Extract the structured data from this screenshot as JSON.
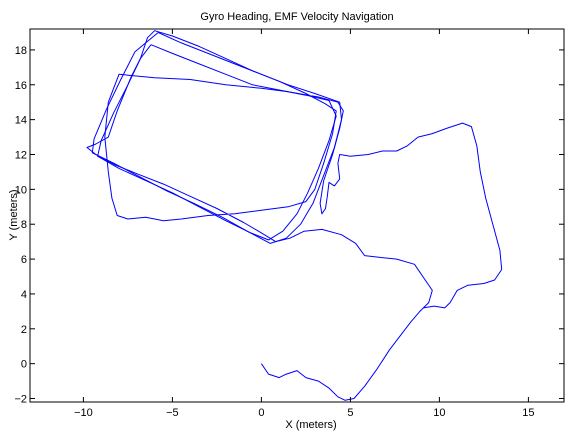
{
  "chart_data": {
    "type": "line",
    "title": "Gyro Heading, EMF Velocity Navigation",
    "xlabel": "X (meters)",
    "ylabel": "Y (meters)",
    "xlim": [
      -13,
      17
    ],
    "ylim": [
      -2.2,
      19.2
    ],
    "x_ticks": [
      -10,
      -5,
      0,
      5,
      10,
      15
    ],
    "y_ticks": [
      -2,
      0,
      2,
      4,
      6,
      8,
      10,
      12,
      14,
      16,
      18
    ],
    "grid": false,
    "series_color": "#0000ff",
    "series": [
      {
        "points": [
          [
            0.0,
            0.0
          ],
          [
            0.4,
            -0.6
          ],
          [
            1.0,
            -0.8
          ],
          [
            1.4,
            -0.6
          ],
          [
            2.0,
            -0.4
          ],
          [
            2.5,
            -0.8
          ],
          [
            3.2,
            -1.0
          ],
          [
            3.8,
            -1.4
          ],
          [
            4.3,
            -1.9
          ],
          [
            4.7,
            -2.1
          ],
          [
            5.2,
            -2.0
          ],
          [
            5.8,
            -1.3
          ],
          [
            6.5,
            -0.3
          ],
          [
            7.2,
            0.8
          ],
          [
            7.8,
            1.6
          ],
          [
            8.4,
            2.4
          ],
          [
            8.9,
            3.0
          ],
          [
            9.1,
            3.2
          ],
          [
            9.7,
            3.3
          ],
          [
            10.3,
            3.2
          ],
          [
            10.6,
            3.5
          ],
          [
            11.0,
            4.2
          ],
          [
            11.6,
            4.5
          ],
          [
            12.5,
            4.6
          ],
          [
            13.1,
            4.8
          ],
          [
            13.5,
            5.4
          ],
          [
            13.4,
            6.5
          ],
          [
            13.0,
            8.0
          ],
          [
            12.6,
            9.5
          ],
          [
            12.3,
            11.0
          ],
          [
            12.1,
            12.5
          ],
          [
            11.8,
            13.6
          ],
          [
            11.3,
            13.8
          ],
          [
            10.4,
            13.5
          ],
          [
            9.6,
            13.2
          ],
          [
            8.8,
            13.0
          ],
          [
            8.2,
            12.5
          ],
          [
            7.6,
            12.2
          ],
          [
            6.8,
            12.2
          ],
          [
            6.0,
            12.0
          ],
          [
            5.0,
            11.9
          ],
          [
            4.4,
            12.0
          ],
          [
            4.3,
            11.5
          ],
          [
            4.4,
            10.6
          ],
          [
            4.1,
            10.2
          ],
          [
            3.8,
            10.4
          ],
          [
            3.7,
            9.6
          ],
          [
            3.6,
            8.9
          ],
          [
            3.4,
            8.6
          ],
          [
            3.3,
            9.2
          ],
          [
            3.5,
            10.5
          ],
          [
            4.0,
            12.0
          ],
          [
            4.4,
            13.5
          ],
          [
            4.6,
            14.5
          ],
          [
            4.3,
            15.0
          ],
          [
            3.2,
            15.3
          ],
          [
            1.5,
            15.6
          ],
          [
            0.0,
            15.8
          ],
          [
            -2.0,
            16.0
          ],
          [
            -4.0,
            16.3
          ],
          [
            -6.0,
            16.4
          ],
          [
            -8.0,
            16.6
          ],
          [
            -8.6,
            15.0
          ],
          [
            -8.8,
            13.0
          ],
          [
            -8.6,
            11.0
          ],
          [
            -8.4,
            9.5
          ],
          [
            -8.1,
            8.5
          ],
          [
            -7.5,
            8.3
          ],
          [
            -6.5,
            8.4
          ],
          [
            -5.5,
            8.2
          ],
          [
            -4.5,
            8.3
          ],
          [
            -3.0,
            8.5
          ],
          [
            -1.5,
            8.6
          ],
          [
            0.0,
            8.8
          ],
          [
            1.5,
            9.0
          ],
          [
            2.5,
            9.3
          ],
          [
            3.0,
            10.0
          ],
          [
            3.5,
            11.5
          ],
          [
            4.0,
            13.2
          ],
          [
            4.2,
            14.5
          ],
          [
            3.6,
            14.9
          ],
          [
            2.5,
            15.5
          ],
          [
            1.0,
            16.2
          ],
          [
            -0.5,
            16.8
          ],
          [
            -2.0,
            17.5
          ],
          [
            -3.5,
            18.2
          ],
          [
            -5.0,
            18.8
          ],
          [
            -6.0,
            19.1
          ],
          [
            -6.4,
            18.7
          ],
          [
            -6.8,
            17.5
          ],
          [
            -7.3,
            16.5
          ],
          [
            -7.7,
            15.5
          ],
          [
            -8.1,
            14.5
          ],
          [
            -8.6,
            13.0
          ],
          [
            -9.3,
            12.6
          ],
          [
            -9.8,
            12.4
          ],
          [
            -9.3,
            12.0
          ],
          [
            -8.2,
            11.4
          ],
          [
            -7.0,
            10.9
          ],
          [
            -5.5,
            10.3
          ],
          [
            -4.0,
            9.6
          ],
          [
            -2.5,
            8.9
          ],
          [
            -1.0,
            8.1
          ],
          [
            0.0,
            7.5
          ],
          [
            0.8,
            7.0
          ],
          [
            1.6,
            7.2
          ],
          [
            2.4,
            7.6
          ],
          [
            3.4,
            7.7
          ],
          [
            4.5,
            7.4
          ],
          [
            5.3,
            6.9
          ],
          [
            5.8,
            6.2
          ],
          [
            6.6,
            6.1
          ],
          [
            7.6,
            6.0
          ],
          [
            8.6,
            5.7
          ],
          [
            9.2,
            4.8
          ],
          [
            9.6,
            4.2
          ],
          [
            9.4,
            3.5
          ],
          [
            9.0,
            3.1
          ]
        ]
      },
      {
        "points": [
          [
            -6.2,
            18.3
          ],
          [
            -5.0,
            17.8
          ],
          [
            -3.5,
            17.2
          ],
          [
            -2.0,
            16.6
          ],
          [
            -0.5,
            16.0
          ],
          [
            1.0,
            15.7
          ],
          [
            2.5,
            15.4
          ],
          [
            3.8,
            15.1
          ],
          [
            4.2,
            14.2
          ],
          [
            3.8,
            12.8
          ],
          [
            3.2,
            11.2
          ],
          [
            2.6,
            9.8
          ],
          [
            2.0,
            8.6
          ],
          [
            1.2,
            7.6
          ],
          [
            0.4,
            7.1
          ],
          [
            -0.6,
            7.5
          ],
          [
            -2.0,
            8.2
          ],
          [
            -3.5,
            9.0
          ],
          [
            -5.0,
            9.8
          ],
          [
            -6.5,
            10.5
          ],
          [
            -8.0,
            11.2
          ],
          [
            -9.2,
            11.9
          ],
          [
            -9.0,
            12.8
          ],
          [
            -8.3,
            14.4
          ],
          [
            -7.5,
            16.0
          ],
          [
            -6.8,
            17.5
          ],
          [
            -6.2,
            18.3
          ]
        ]
      },
      {
        "points": [
          [
            -5.8,
            19.0
          ],
          [
            -4.5,
            18.4
          ],
          [
            -3.0,
            17.8
          ],
          [
            -1.5,
            17.2
          ],
          [
            0.0,
            16.6
          ],
          [
            1.5,
            16.0
          ],
          [
            3.0,
            15.5
          ],
          [
            4.4,
            15.0
          ],
          [
            4.5,
            14.0
          ],
          [
            4.1,
            12.4
          ],
          [
            3.5,
            10.8
          ],
          [
            2.9,
            9.2
          ],
          [
            2.2,
            8.0
          ],
          [
            1.4,
            7.2
          ],
          [
            0.5,
            6.9
          ],
          [
            -0.8,
            7.6
          ],
          [
            -2.2,
            8.4
          ],
          [
            -3.8,
            9.2
          ],
          [
            -5.3,
            9.9
          ],
          [
            -6.8,
            10.7
          ],
          [
            -8.3,
            11.5
          ],
          [
            -9.5,
            12.1
          ],
          [
            -9.4,
            12.9
          ],
          [
            -8.7,
            14.6
          ],
          [
            -7.9,
            16.3
          ],
          [
            -7.1,
            17.9
          ],
          [
            -5.8,
            19.0
          ]
        ]
      }
    ]
  }
}
